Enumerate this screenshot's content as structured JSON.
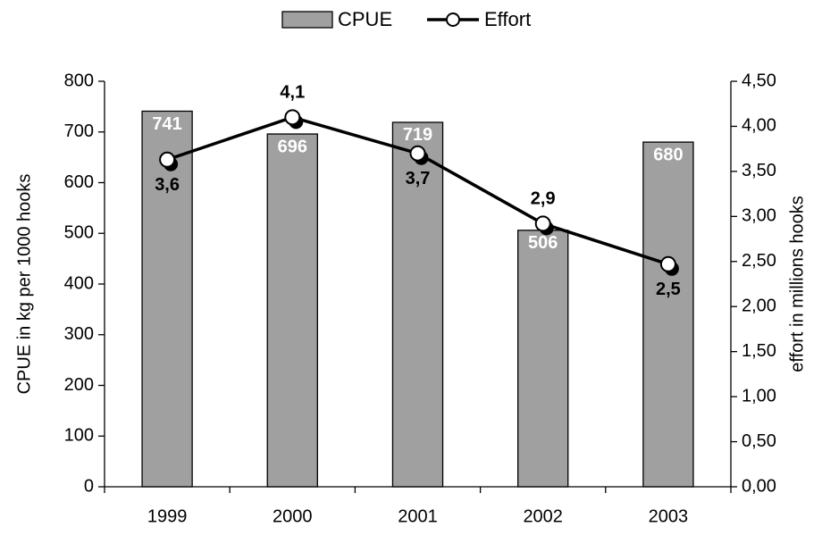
{
  "chart_data": {
    "type": "bar-line",
    "categories": [
      "1999",
      "2000",
      "2001",
      "2002",
      "2003"
    ],
    "series": [
      {
        "name": "CPUE",
        "type": "bar",
        "color": "#a0a0a0",
        "values": [
          741,
          696,
          719,
          506,
          680
        ]
      },
      {
        "name": "Effort",
        "type": "line",
        "axis": "y2",
        "color": "#000000",
        "values": [
          3.63,
          4.1,
          3.7,
          2.92,
          2.47
        ],
        "value_labels": [
          "3,6",
          "4,1",
          "3,7",
          "2,9",
          "2,5"
        ]
      }
    ],
    "ylabel": "CPUE in kg per 1000 hooks",
    "y2label": "effort in millions hooks",
    "ylim": [
      0,
      800
    ],
    "yticks": [
      0,
      100,
      200,
      300,
      400,
      500,
      600,
      700,
      800
    ],
    "y2lim": [
      0,
      4.5
    ],
    "y2ticks": [
      {
        "value": 0,
        "label": "0,00"
      },
      {
        "value": 0.5,
        "label": "0,50"
      },
      {
        "value": 1,
        "label": "1,00"
      },
      {
        "value": 1.5,
        "label": "1,50"
      },
      {
        "value": 2,
        "label": "2,00"
      },
      {
        "value": 2.5,
        "label": "2,50"
      },
      {
        "value": 3,
        "label": "3,00"
      },
      {
        "value": 3.5,
        "label": "3,50"
      },
      {
        "value": 4,
        "label": "4,00"
      },
      {
        "value": 4.5,
        "label": "4,50"
      }
    ],
    "legend": "top"
  }
}
